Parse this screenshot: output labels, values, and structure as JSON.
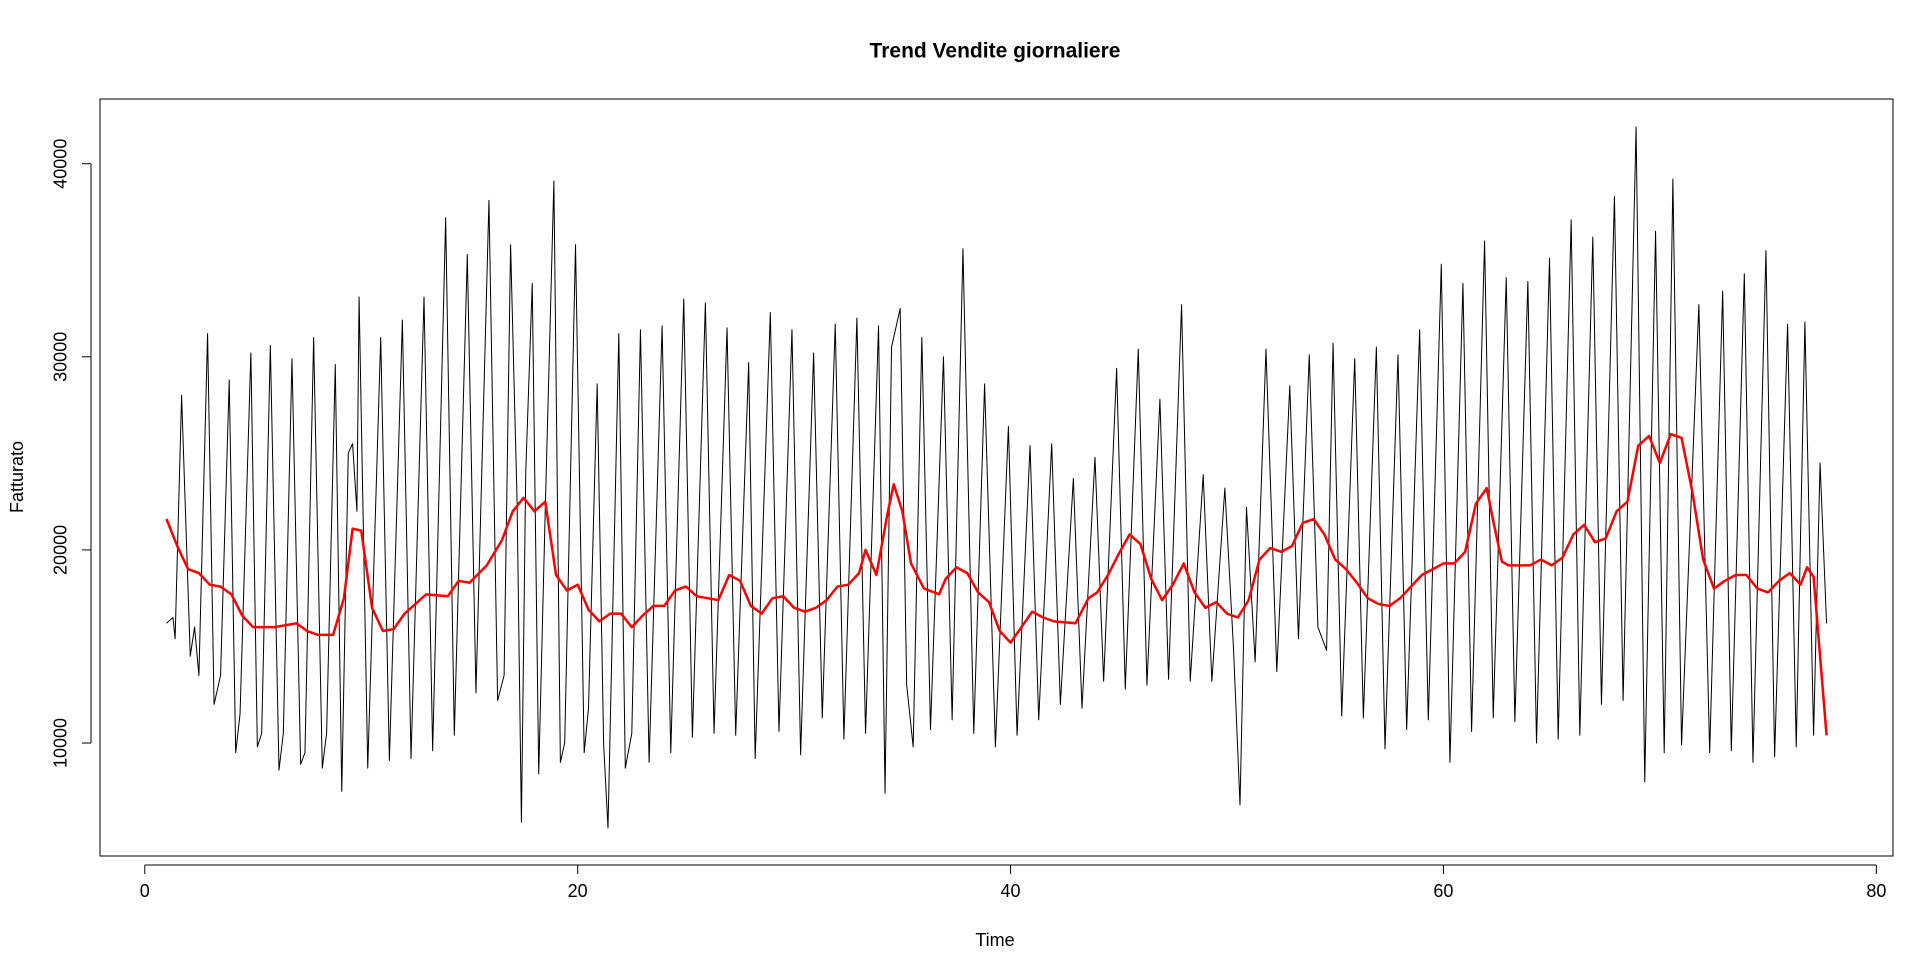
{
  "chart_data": {
    "type": "line",
    "title": "Trend Vendite giornaliere",
    "x_label": "Time",
    "y_label": "Fatturato",
    "xlim": [
      -2.07,
      80.77
    ],
    "ylim": [
      4150,
      43350
    ],
    "xticks": [
      0,
      20,
      40,
      60,
      80
    ],
    "yticks": [
      10000,
      20000,
      30000,
      40000
    ],
    "grid": false,
    "series": [
      {
        "color": "#000000",
        "width": 1,
        "x": [
          1,
          1.3,
          1.4,
          1.7,
          2.1,
          2.3,
          2.5,
          2.9,
          3.2,
          3.5,
          3.9,
          4.2,
          4.4,
          4.9,
          5.2,
          5.4,
          5.8,
          6.2,
          6.4,
          6.8,
          7.2,
          7.4,
          7.8,
          8.2,
          8.4,
          8.8,
          9.1,
          9.4,
          9.6,
          9.8,
          9.9,
          10.3,
          10.9,
          11.3,
          11.9,
          12.3,
          12.9,
          13.3,
          13.9,
          14.3,
          14.9,
          15.3,
          15.9,
          16.3,
          16.6,
          16.9,
          17.2,
          17.4,
          17.6,
          17.9,
          18.2,
          18.5,
          18.9,
          19.2,
          19.4,
          19.9,
          20.3,
          20.5,
          20.9,
          21.2,
          21.4,
          21.9,
          22.2,
          22.5,
          22.9,
          23.3,
          23.9,
          24.3,
          24.9,
          25.3,
          25.9,
          26.3,
          26.9,
          27.3,
          27.9,
          28.2,
          28.9,
          29.3,
          29.9,
          30.3,
          30.9,
          31.3,
          31.9,
          32.3,
          32.9,
          33.3,
          33.9,
          34.2,
          34.5,
          34.9,
          35.2,
          35.5,
          35.9,
          36.3,
          36.9,
          37.3,
          37.8,
          38.3,
          38.8,
          39.3,
          39.9,
          40.3,
          40.9,
          41.3,
          41.9,
          42.3,
          42.9,
          43.3,
          43.9,
          44.3,
          44.9,
          45.3,
          45.9,
          46.3,
          46.9,
          47.3,
          47.9,
          48.3,
          48.9,
          49.3,
          49.9,
          50.3,
          50.6,
          50.9,
          51.3,
          51.8,
          52.3,
          52.9,
          53.3,
          53.8,
          54.2,
          54.6,
          54.9,
          55.3,
          55.9,
          56.3,
          56.9,
          57.3,
          57.9,
          58.3,
          58.9,
          59.3,
          59.9,
          60.3,
          60.9,
          61.3,
          61.9,
          62.3,
          62.9,
          63.3,
          63.9,
          64.3,
          64.9,
          65.3,
          65.9,
          66.3,
          66.9,
          67.3,
          67.9,
          68.3,
          68.9,
          69.3,
          69.8,
          70.2,
          70.6,
          71.0,
          71.8,
          72.3,
          72.9,
          73.3,
          73.9,
          74.3,
          74.9,
          75.3,
          75.9,
          76.3,
          76.7,
          77.1,
          77.4,
          77.7
        ],
        "values": [
          16200,
          16500,
          15400,
          28000,
          14500,
          16000,
          13500,
          31200,
          12000,
          13500,
          28800,
          9500,
          11500,
          30200,
          9800,
          10500,
          30600,
          8600,
          10500,
          29900,
          8900,
          9500,
          31000,
          8700,
          10500,
          29600,
          7500,
          25000,
          25500,
          22000,
          33100,
          8700,
          31000,
          9100,
          31900,
          9200,
          33100,
          9600,
          37200,
          10400,
          35300,
          12600,
          38100,
          12200,
          13500,
          35800,
          22500,
          5900,
          24000,
          33800,
          8400,
          22000,
          39100,
          9000,
          10000,
          35800,
          9500,
          11800,
          28600,
          9900,
          5600,
          31200,
          8700,
          10500,
          31400,
          9000,
          31600,
          9500,
          33000,
          10300,
          32800,
          10500,
          31500,
          10400,
          29700,
          9200,
          32300,
          10600,
          31400,
          9400,
          30200,
          11300,
          31700,
          10200,
          32000,
          10500,
          31600,
          7400,
          30500,
          32500,
          13000,
          9800,
          31000,
          10700,
          30000,
          11200,
          35600,
          10500,
          28600,
          9800,
          26400,
          10400,
          25400,
          11200,
          25500,
          12000,
          23700,
          11800,
          24800,
          13200,
          29400,
          12800,
          30400,
          13000,
          27800,
          13300,
          32700,
          13200,
          23900,
          13200,
          23200,
          14900,
          6800,
          22200,
          14200,
          30400,
          13700,
          28500,
          15400,
          30100,
          16000,
          14800,
          30700,
          11400,
          29900,
          11300,
          30500,
          9700,
          30100,
          10700,
          31400,
          11200,
          34800,
          9000,
          33800,
          10600,
          36000,
          11300,
          34100,
          11100,
          33900,
          10000,
          35100,
          10200,
          37100,
          10400,
          36200,
          12000,
          38300,
          12200,
          41900,
          8000,
          36500,
          9500,
          39200,
          9900,
          32700,
          9500,
          33400,
          9600,
          34300,
          9000,
          35500,
          9300,
          31700,
          9800,
          31800,
          10400,
          24500,
          16200
        ]
      },
      {
        "color": "#ff0000",
        "width": 2.5,
        "x": [
          1,
          1.5,
          2,
          2.5,
          3,
          3.5,
          4,
          4.5,
          5,
          6,
          7,
          7.5,
          8,
          8.7,
          9.2,
          9.6,
          10,
          10.5,
          11,
          11.5,
          12,
          13,
          14,
          14.5,
          15,
          15.8,
          16.5,
          17,
          17.5,
          18,
          18.5,
          19,
          19.5,
          20,
          20.5,
          21,
          21.5,
          22,
          22.5,
          23,
          23.5,
          24,
          24.5,
          25,
          25.5,
          26,
          26.5,
          27,
          27.5,
          28,
          28.5,
          29,
          29.5,
          30,
          30.5,
          31,
          31.5,
          32,
          32.5,
          33,
          33.3,
          33.8,
          34.3,
          34.6,
          35,
          35.4,
          36,
          36.7,
          37,
          37.5,
          38,
          38.5,
          39,
          39.5,
          40,
          40.5,
          41,
          41.5,
          42,
          43,
          43.6,
          44,
          44.5,
          45,
          45.5,
          46,
          46.5,
          47,
          47.5,
          48,
          48.5,
          49,
          49.5,
          50,
          50.5,
          51,
          51.5,
          52,
          52.5,
          53,
          53.5,
          54,
          54.5,
          55,
          55.5,
          56,
          56.5,
          57,
          57.5,
          58,
          58.5,
          59,
          59.5,
          60,
          60.5,
          61,
          61.5,
          62,
          62.3,
          62.7,
          63,
          64,
          64.5,
          65,
          65.5,
          66,
          66.5,
          67,
          67.5,
          68,
          68.5,
          69,
          69.5,
          70,
          70.5,
          71,
          71.5,
          72,
          72.5,
          73,
          73.5,
          74,
          74.5,
          75,
          75.5,
          76,
          76.5,
          76.8,
          77.1,
          77.7
        ],
        "values": [
          21600,
          20200,
          19000,
          18800,
          18200,
          18100,
          17700,
          16600,
          16000,
          16000,
          16200,
          15800,
          15600,
          15600,
          17500,
          21100,
          21000,
          17000,
          15800,
          15900,
          16700,
          17700,
          17600,
          18400,
          18300,
          19200,
          20500,
          22000,
          22700,
          22000,
          22500,
          18700,
          17900,
          18200,
          16900,
          16300,
          16700,
          16700,
          16000,
          16600,
          17100,
          17100,
          17900,
          18100,
          17600,
          17500,
          17400,
          18700,
          18400,
          17100,
          16700,
          17500,
          17600,
          17000,
          16800,
          17000,
          17400,
          18100,
          18200,
          18800,
          20000,
          18700,
          21800,
          23400,
          22000,
          19300,
          18000,
          17700,
          18500,
          19100,
          18800,
          17800,
          17300,
          15800,
          15200,
          16000,
          16800,
          16500,
          16300,
          16200,
          17500,
          17800,
          18700,
          19800,
          20800,
          20300,
          18500,
          17400,
          18200,
          19300,
          17800,
          17000,
          17300,
          16700,
          16500,
          17400,
          19500,
          20100,
          19900,
          20200,
          21400,
          21600,
          20800,
          19500,
          19000,
          18300,
          17500,
          17200,
          17100,
          17500,
          18100,
          18700,
          19000,
          19300,
          19300,
          19900,
          22400,
          23200,
          21500,
          19400,
          19200,
          19200,
          19500,
          19200,
          19600,
          20800,
          21300,
          20400,
          20600,
          22000,
          22500,
          25400,
          25900,
          24500,
          26000,
          25800,
          23000,
          19500,
          18000,
          18400,
          18700,
          18700,
          18000,
          17800,
          18400,
          18800,
          18200,
          19100,
          18600,
          10400
        ]
      }
    ]
  }
}
